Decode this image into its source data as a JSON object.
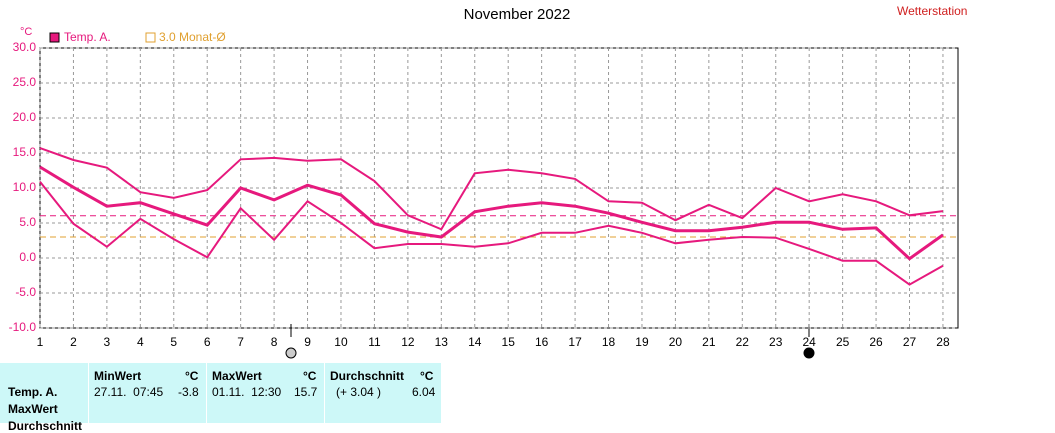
{
  "chart_data": {
    "type": "line",
    "title": "November 2022",
    "source": "Wetterstation",
    "y_unit": "°C",
    "x": [
      1,
      2,
      3,
      4,
      5,
      6,
      7,
      8,
      9,
      10,
      11,
      12,
      13,
      14,
      15,
      16,
      17,
      18,
      19,
      20,
      21,
      22,
      23,
      24,
      25,
      26,
      27,
      28
    ],
    "xlim": [
      1,
      28.45
    ],
    "xticks": [
      1,
      2,
      3,
      4,
      5,
      6,
      7,
      8,
      9,
      10,
      11,
      12,
      13,
      14,
      15,
      16,
      17,
      18,
      19,
      20,
      21,
      22,
      23,
      24,
      25,
      26,
      27,
      28
    ],
    "ylim": [
      -10,
      30
    ],
    "yticks": [
      {
        "value": -10,
        "label": "-10.0"
      },
      {
        "value": -5,
        "label": "-5.0"
      },
      {
        "value": 0,
        "label": "0.0"
      },
      {
        "value": 5,
        "label": "5.0"
      },
      {
        "value": 10,
        "label": "10.0"
      },
      {
        "value": 15,
        "label": "15.0"
      },
      {
        "value": 20,
        "label": "20.0"
      },
      {
        "value": 25,
        "label": "25.0"
      },
      {
        "value": 30,
        "label": "30.0"
      }
    ],
    "grid": true,
    "series": [
      {
        "name": "Temp. A.",
        "color": "#e6197d",
        "values": [
          13.0,
          10.1,
          7.4,
          7.9,
          6.3,
          4.7,
          10.0,
          8.3,
          10.4,
          9.0,
          4.9,
          3.7,
          3.0,
          6.6,
          7.4,
          7.9,
          7.4,
          6.4,
          5.1,
          3.9,
          3.9,
          4.4,
          5.1,
          5.1,
          4.1,
          4.3,
          -0.1,
          3.3
        ],
        "max_values": [
          15.7,
          14.0,
          12.9,
          9.4,
          8.6,
          9.7,
          14.1,
          14.3,
          13.9,
          14.1,
          11.0,
          6.1,
          4.1,
          12.1,
          12.6,
          12.1,
          11.3,
          8.1,
          7.9,
          5.4,
          7.6,
          5.7,
          10.0,
          8.1,
          9.1,
          8.1,
          6.1,
          6.7
        ],
        "min_values": [
          10.9,
          4.9,
          1.6,
          5.6,
          2.7,
          0.1,
          7.1,
          2.6,
          8.1,
          5.0,
          1.4,
          2.0,
          2.0,
          1.6,
          2.1,
          3.6,
          3.6,
          4.6,
          3.6,
          2.1,
          2.6,
          3.0,
          2.9,
          1.3,
          -0.4,
          -0.4,
          -3.8,
          -1.1
        ]
      }
    ],
    "reference_lines": [
      {
        "value": 6.04,
        "color": "#e6197d"
      },
      {
        "name": "3.0 Monat-Ø",
        "value": 3.0,
        "color": "#e0a030"
      }
    ]
  },
  "table": {
    "row_labels": [
      "Temp. A.",
      "MaxWert",
      "Durchschnitt"
    ],
    "columns": [
      {
        "header": "MinWert",
        "unit": "°C",
        "detail": "27.11.  07:45",
        "value": "-3.8"
      },
      {
        "header": "MaxWert",
        "unit": "°C",
        "detail": "01.11.  12:30",
        "value": "15.7"
      },
      {
        "header": "Durchschnitt",
        "unit": "°C",
        "detail": "(+ 3.04 )",
        "value": "6.04"
      }
    ]
  }
}
